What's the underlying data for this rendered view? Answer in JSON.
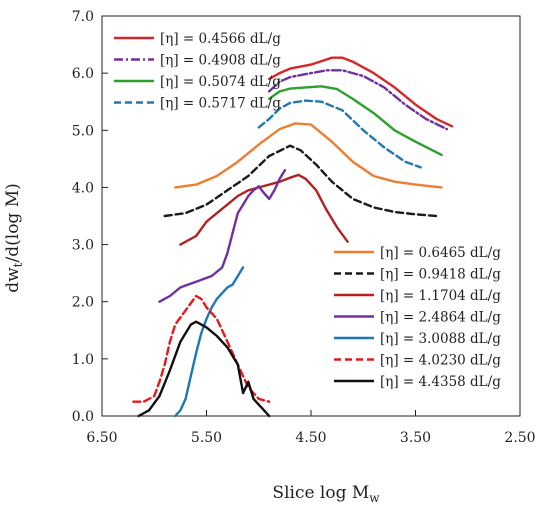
{
  "chart_data": {
    "type": "line",
    "title": "",
    "xlabel": "Slice log M",
    "xlabel_sub": "w",
    "ylabel": "dw",
    "ylabel_sub": "t",
    "ylabel_rest": "/d(log M)",
    "xlim": [
      6.5,
      2.5
    ],
    "ylim": [
      0.0,
      7.0
    ],
    "x_reversed": true,
    "xticks": [
      "6.50",
      "5.50",
      "4.50",
      "3.50",
      "2.50"
    ],
    "yticks": [
      "0.0",
      "1.0",
      "2.0",
      "3.0",
      "4.0",
      "5.0",
      "6.0",
      "7.0"
    ],
    "grid": false,
    "legend_placement": [
      "top-left",
      "bottom-right"
    ],
    "series": [
      {
        "name": "[η] = 0.4566 dL/g",
        "color": "#d62728",
        "dash": "solid",
        "legend_group": 0,
        "points": [
          [
            4.9,
            5.9
          ],
          [
            4.8,
            6.0
          ],
          [
            4.7,
            6.08
          ],
          [
            4.5,
            6.15
          ],
          [
            4.3,
            6.27
          ],
          [
            4.2,
            6.27
          ],
          [
            4.1,
            6.2
          ],
          [
            3.9,
            6.0
          ],
          [
            3.7,
            5.75
          ],
          [
            3.5,
            5.45
          ],
          [
            3.3,
            5.2
          ],
          [
            3.15,
            5.07
          ]
        ]
      },
      {
        "name": "[η] = 0.4908 dL/g",
        "color": "#7030a0",
        "dash": "dashdot",
        "legend_group": 0,
        "points": [
          [
            4.9,
            5.68
          ],
          [
            4.8,
            5.85
          ],
          [
            4.7,
            5.93
          ],
          [
            4.5,
            6.0
          ],
          [
            4.35,
            6.05
          ],
          [
            4.2,
            6.05
          ],
          [
            4.0,
            5.95
          ],
          [
            3.8,
            5.75
          ],
          [
            3.6,
            5.45
          ],
          [
            3.4,
            5.2
          ],
          [
            3.2,
            5.02
          ]
        ]
      },
      {
        "name": "[η] = 0.5074 dL/g",
        "color": "#2ca02c",
        "dash": "solid",
        "legend_group": 0,
        "points": [
          [
            4.9,
            5.55
          ],
          [
            4.8,
            5.68
          ],
          [
            4.7,
            5.73
          ],
          [
            4.55,
            5.75
          ],
          [
            4.4,
            5.77
          ],
          [
            4.25,
            5.72
          ],
          [
            4.1,
            5.55
          ],
          [
            3.9,
            5.3
          ],
          [
            3.7,
            5.0
          ],
          [
            3.5,
            4.8
          ],
          [
            3.25,
            4.57
          ]
        ]
      },
      {
        "name": "[η] = 0.5717 dL/g",
        "color": "#1f77b4",
        "dash": "dashed",
        "legend_group": 0,
        "points": [
          [
            5.0,
            5.05
          ],
          [
            4.9,
            5.2
          ],
          [
            4.8,
            5.38
          ],
          [
            4.7,
            5.48
          ],
          [
            4.55,
            5.52
          ],
          [
            4.4,
            5.5
          ],
          [
            4.2,
            5.35
          ],
          [
            4.0,
            5.0
          ],
          [
            3.8,
            4.7
          ],
          [
            3.6,
            4.45
          ],
          [
            3.45,
            4.35
          ]
        ]
      },
      {
        "name": "[η] = 0.6465 dL/g",
        "color": "#ed7d31",
        "dash": "solid",
        "legend_group": 1,
        "points": [
          [
            5.8,
            4.0
          ],
          [
            5.6,
            4.05
          ],
          [
            5.4,
            4.2
          ],
          [
            5.2,
            4.45
          ],
          [
            5.0,
            4.75
          ],
          [
            4.8,
            5.02
          ],
          [
            4.65,
            5.12
          ],
          [
            4.5,
            5.1
          ],
          [
            4.3,
            4.8
          ],
          [
            4.1,
            4.45
          ],
          [
            3.9,
            4.2
          ],
          [
            3.7,
            4.1
          ],
          [
            3.5,
            4.05
          ],
          [
            3.25,
            4.0
          ]
        ]
      },
      {
        "name": "[η] = 0.9418 dL/g",
        "color": "#1a1a1a",
        "dash": "dashed",
        "legend_group": 1,
        "points": [
          [
            5.9,
            3.5
          ],
          [
            5.7,
            3.55
          ],
          [
            5.5,
            3.7
          ],
          [
            5.3,
            3.95
          ],
          [
            5.1,
            4.2
          ],
          [
            4.9,
            4.55
          ],
          [
            4.7,
            4.73
          ],
          [
            4.6,
            4.65
          ],
          [
            4.45,
            4.4
          ],
          [
            4.3,
            4.1
          ],
          [
            4.1,
            3.8
          ],
          [
            3.9,
            3.65
          ],
          [
            3.7,
            3.57
          ],
          [
            3.5,
            3.53
          ],
          [
            3.3,
            3.5
          ]
        ]
      },
      {
        "name": "[η] = 1.1704 dL/g",
        "color": "#b22222",
        "dash": "solid",
        "legend_group": 1,
        "points": [
          [
            5.75,
            3.0
          ],
          [
            5.6,
            3.15
          ],
          [
            5.5,
            3.4
          ],
          [
            5.4,
            3.55
          ],
          [
            5.3,
            3.7
          ],
          [
            5.2,
            3.85
          ],
          [
            5.1,
            3.95
          ],
          [
            5.0,
            4.0
          ],
          [
            4.9,
            4.05
          ],
          [
            4.8,
            4.1
          ],
          [
            4.7,
            4.17
          ],
          [
            4.62,
            4.22
          ],
          [
            4.55,
            4.15
          ],
          [
            4.45,
            3.95
          ],
          [
            4.35,
            3.6
          ],
          [
            4.25,
            3.3
          ],
          [
            4.15,
            3.05
          ]
        ]
      },
      {
        "name": "[η] = 2.4864 dL/g",
        "color": "#7030a0",
        "dash": "solid",
        "legend_group": 1,
        "points": [
          [
            5.95,
            2.0
          ],
          [
            5.85,
            2.1
          ],
          [
            5.75,
            2.25
          ],
          [
            5.6,
            2.35
          ],
          [
            5.45,
            2.45
          ],
          [
            5.35,
            2.6
          ],
          [
            5.3,
            2.85
          ],
          [
            5.25,
            3.2
          ],
          [
            5.2,
            3.55
          ],
          [
            5.15,
            3.7
          ],
          [
            5.1,
            3.85
          ],
          [
            5.05,
            3.95
          ],
          [
            5.0,
            4.02
          ],
          [
            4.95,
            3.9
          ],
          [
            4.9,
            3.8
          ],
          [
            4.85,
            3.95
          ],
          [
            4.8,
            4.15
          ],
          [
            4.75,
            4.3
          ]
        ]
      },
      {
        "name": "[η] = 3.0088 dL/g",
        "color": "#1f77b4",
        "dash": "solid",
        "legend_group": 1,
        "points": [
          [
            5.8,
            0.0
          ],
          [
            5.75,
            0.1
          ],
          [
            5.7,
            0.3
          ],
          [
            5.65,
            0.7
          ],
          [
            5.6,
            1.1
          ],
          [
            5.55,
            1.45
          ],
          [
            5.5,
            1.7
          ],
          [
            5.45,
            1.9
          ],
          [
            5.4,
            2.05
          ],
          [
            5.35,
            2.15
          ],
          [
            5.3,
            2.25
          ],
          [
            5.25,
            2.3
          ],
          [
            5.2,
            2.45
          ],
          [
            5.15,
            2.6
          ]
        ]
      },
      {
        "name": "[η] = 4.0230 dL/g",
        "color": "#e31a1c",
        "dash": "dashed",
        "legend_group": 1,
        "points": [
          [
            6.2,
            0.25
          ],
          [
            6.1,
            0.25
          ],
          [
            6.0,
            0.35
          ],
          [
            5.95,
            0.6
          ],
          [
            5.9,
            0.9
          ],
          [
            5.85,
            1.3
          ],
          [
            5.8,
            1.6
          ],
          [
            5.7,
            1.85
          ],
          [
            5.6,
            2.1
          ],
          [
            5.55,
            2.05
          ],
          [
            5.5,
            1.9
          ],
          [
            5.4,
            1.7
          ],
          [
            5.3,
            1.3
          ],
          [
            5.2,
            0.9
          ],
          [
            5.1,
            0.5
          ],
          [
            5.0,
            0.3
          ],
          [
            4.9,
            0.25
          ]
        ]
      },
      {
        "name": "[η] = 4.4358 dL/g",
        "color": "#111111",
        "dash": "solid",
        "legend_group": 1,
        "points": [
          [
            6.15,
            0.0
          ],
          [
            6.05,
            0.1
          ],
          [
            5.95,
            0.35
          ],
          [
            5.85,
            0.8
          ],
          [
            5.75,
            1.3
          ],
          [
            5.65,
            1.6
          ],
          [
            5.6,
            1.65
          ],
          [
            5.5,
            1.55
          ],
          [
            5.4,
            1.4
          ],
          [
            5.3,
            1.2
          ],
          [
            5.2,
            0.9
          ],
          [
            5.15,
            0.4
          ],
          [
            5.1,
            0.6
          ],
          [
            5.05,
            0.3
          ],
          [
            4.95,
            0.1
          ],
          [
            4.9,
            0.0
          ]
        ]
      }
    ]
  }
}
